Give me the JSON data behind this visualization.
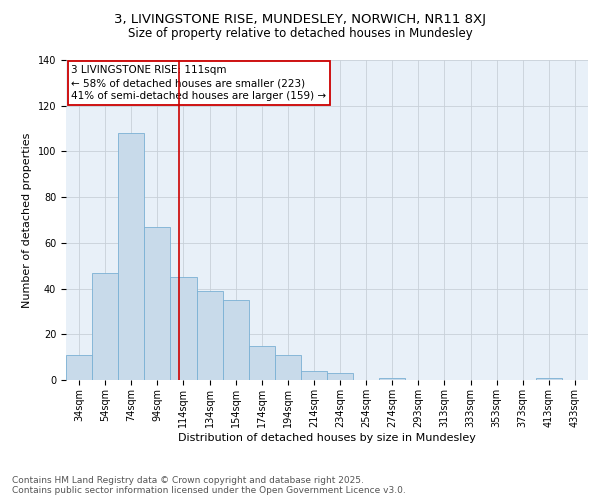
{
  "title": "3, LIVINGSTONE RISE, MUNDESLEY, NORWICH, NR11 8XJ",
  "subtitle": "Size of property relative to detached houses in Mundesley",
  "xlabel": "Distribution of detached houses by size in Mundesley",
  "ylabel": "Number of detached properties",
  "bar_values": [
    11,
    47,
    108,
    67,
    45,
    39,
    35,
    15,
    11,
    4,
    3,
    0,
    1,
    0,
    0,
    0,
    0,
    0,
    1,
    0
  ],
  "bar_labels": [
    "34sqm",
    "54sqm",
    "74sqm",
    "94sqm",
    "114sqm",
    "134sqm",
    "154sqm",
    "174sqm",
    "194sqm",
    "214sqm",
    "234sqm",
    "254sqm",
    "274sqm",
    "293sqm",
    "313sqm",
    "333sqm",
    "353sqm",
    "373sqm",
    "413sqm",
    "433sqm"
  ],
  "bar_color": "#c8daea",
  "bar_edge_color": "#7ab0d4",
  "property_line_x": 3.82,
  "annotation_text": "3 LIVINGSTONE RISE: 111sqm\n← 58% of detached houses are smaller (223)\n41% of semi-detached houses are larger (159) →",
  "annotation_box_color": "#ffffff",
  "annotation_box_edge_color": "#cc0000",
  "line_color": "#cc0000",
  "ylim": [
    0,
    140
  ],
  "yticks": [
    0,
    20,
    40,
    60,
    80,
    100,
    120,
    140
  ],
  "footer_line1": "Contains HM Land Registry data © Crown copyright and database right 2025.",
  "footer_line2": "Contains public sector information licensed under the Open Government Licence v3.0.",
  "background_color": "#ffffff",
  "plot_bg_color": "#e8f0f8",
  "grid_color": "#c8d0d8",
  "title_fontsize": 9.5,
  "subtitle_fontsize": 8.5,
  "axis_label_fontsize": 8,
  "tick_fontsize": 7,
  "annotation_fontsize": 7.5,
  "footer_fontsize": 6.5
}
